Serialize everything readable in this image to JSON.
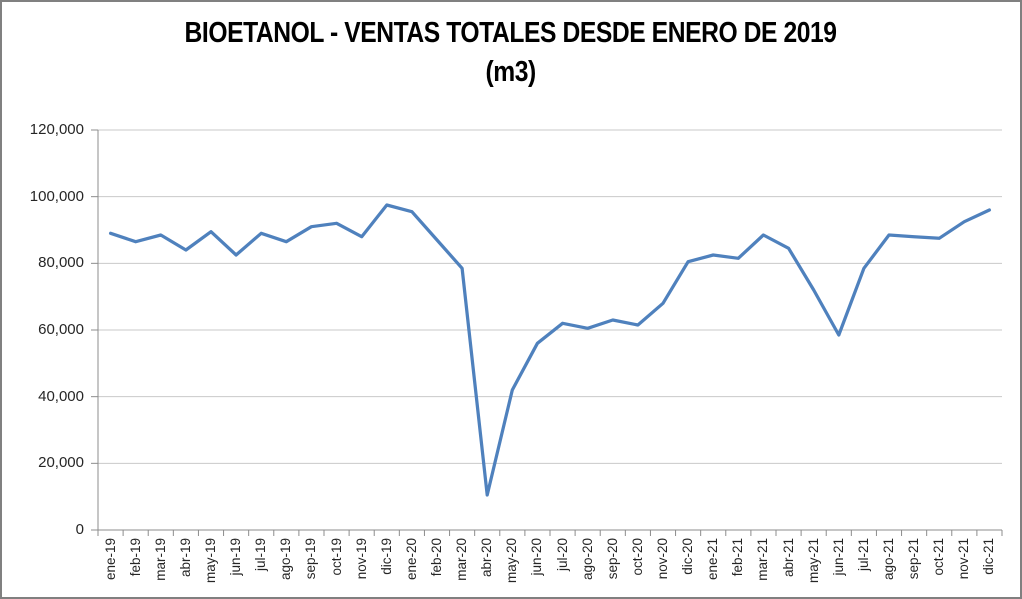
{
  "chart": {
    "title_line1": "BIOETANOL - VENTAS TOTALES DESDE ENERO DE 2019",
    "title_line2": "(m3)"
  },
  "colors": {
    "series_line": "#4F81BD",
    "gridline": "#C9C9C9",
    "axis": "#8C8C8C",
    "label_text": "#262626",
    "title_text": "#000000",
    "outer_border": "#808080"
  },
  "chart_data": {
    "type": "line",
    "title": "BIOETANOL - VENTAS TOTALES DESDE ENERO DE 2019 (m3)",
    "xlabel": "",
    "ylabel": "",
    "ylim": [
      0,
      120000
    ],
    "ytick_interval": 20000,
    "ytick_labels": [
      "0",
      "20,000",
      "40,000",
      "60,000",
      "80,000",
      "100,000",
      "120,000"
    ],
    "grid": true,
    "legend": false,
    "categories": [
      "ene-19",
      "feb-19",
      "mar-19",
      "abr-19",
      "may-19",
      "jun-19",
      "jul-19",
      "ago-19",
      "sep-19",
      "oct-19",
      "nov-19",
      "dic-19",
      "ene-20",
      "feb-20",
      "mar-20",
      "abr-20",
      "may-20",
      "jun-20",
      "jul-20",
      "ago-20",
      "sep-20",
      "oct-20",
      "nov-20",
      "dic-20",
      "ene-21",
      "feb-21",
      "mar-21",
      "abr-21",
      "may-21",
      "jun-21",
      "jul-21",
      "ago-21",
      "sep-21",
      "oct-21",
      "nov-21",
      "dic-21"
    ],
    "values": [
      89000,
      86500,
      88500,
      84000,
      89500,
      82500,
      89000,
      86500,
      91000,
      92000,
      88000,
      97500,
      95500,
      87000,
      78500,
      10500,
      42000,
      56000,
      62000,
      60500,
      63000,
      61500,
      68000,
      80500,
      82500,
      81500,
      88500,
      84500,
      72000,
      58500,
      78500,
      88500,
      88000,
      87500,
      92500,
      96000
    ]
  }
}
